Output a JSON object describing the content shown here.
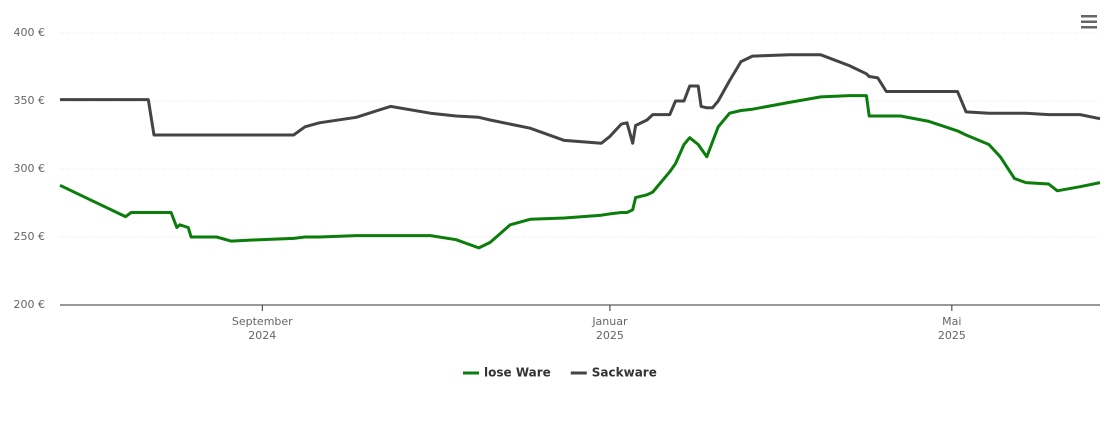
{
  "chart_data": {
    "type": "line",
    "x": [
      "2024-06-22",
      "2024-07-03",
      "2024-07-15",
      "2024-07-17",
      "2024-07-23",
      "2024-07-25",
      "2024-07-31",
      "2024-08-02",
      "2024-08-03",
      "2024-08-06",
      "2024-08-07",
      "2024-08-16",
      "2024-08-21",
      "2024-08-31",
      "2024-09-12",
      "2024-09-16",
      "2024-09-21",
      "2024-10-04",
      "2024-10-16",
      "2024-10-30",
      "2024-11-08",
      "2024-11-16",
      "2024-11-20",
      "2024-11-27",
      "2024-12-04",
      "2024-12-16",
      "2024-12-29",
      "2025-01-01",
      "2025-01-05",
      "2025-01-07",
      "2025-01-09",
      "2025-01-10",
      "2025-01-14",
      "2025-01-16",
      "2025-01-22",
      "2025-01-24",
      "2025-01-27",
      "2025-01-29",
      "2025-02-01",
      "2025-02-02",
      "2025-02-04",
      "2025-02-06",
      "2025-02-08",
      "2025-02-12",
      "2025-02-16",
      "2025-02-20",
      "2025-03-05",
      "2025-03-16",
      "2025-03-26",
      "2025-04-01",
      "2025-04-02",
      "2025-04-05",
      "2025-04-08",
      "2025-04-13",
      "2025-04-23",
      "2025-05-03",
      "2025-05-06",
      "2025-05-14",
      "2025-05-18",
      "2025-05-23",
      "2025-05-27",
      "2025-06-04",
      "2025-06-07",
      "2025-06-15",
      "2025-06-22"
    ],
    "series": [
      {
        "name": "lose Ware",
        "color": "#0a7d0a",
        "values": [
          288,
          277,
          265,
          268,
          268,
          268,
          268,
          257,
          259,
          257,
          250,
          250,
          247,
          248,
          249,
          250,
          250,
          251,
          251,
          251,
          248,
          242,
          246,
          259,
          263,
          264,
          266,
          267,
          268,
          268,
          270,
          279,
          281,
          283,
          298,
          304,
          318,
          323,
          318,
          315,
          309,
          320,
          331,
          341,
          343,
          344,
          349,
          353,
          354,
          354,
          339,
          339,
          339,
          339,
          335,
          328,
          325,
          318,
          309,
          293,
          290,
          289,
          284,
          287,
          290
        ]
      },
      {
        "name": "Sackware",
        "color": "#434348",
        "values": [
          351,
          351,
          351,
          351,
          351,
          325,
          325,
          325,
          325,
          325,
          325,
          325,
          325,
          325,
          325,
          331,
          334,
          338,
          346,
          341,
          339,
          338,
          336,
          333,
          330,
          321,
          319,
          324,
          333,
          334,
          319,
          332,
          336,
          340,
          340,
          350,
          350,
          361,
          361,
          346,
          345,
          345,
          350,
          365,
          379,
          383,
          384,
          384,
          376,
          370,
          368,
          367,
          357,
          357,
          357,
          357,
          342,
          341,
          341,
          341,
          341,
          340,
          340,
          340,
          337
        ]
      }
    ],
    "xlim": [
      "2024-06-22",
      "2025-06-22"
    ],
    "xticks": [
      {
        "value": "2024-09-01",
        "label": [
          "September",
          "2024"
        ]
      },
      {
        "value": "2025-01-01",
        "label": [
          "Januar",
          "2025"
        ]
      },
      {
        "value": "2025-05-01",
        "label": [
          "Mai",
          "2025"
        ]
      }
    ],
    "ylim": [
      200,
      400
    ],
    "yticks": [
      {
        "value": 200,
        "label": "200 €"
      },
      {
        "value": 250,
        "label": "250 €"
      },
      {
        "value": 300,
        "label": "300 €"
      },
      {
        "value": 350,
        "label": "350 €"
      },
      {
        "value": 400,
        "label": "400 €"
      }
    ],
    "grid": true,
    "legend": "bottom"
  }
}
